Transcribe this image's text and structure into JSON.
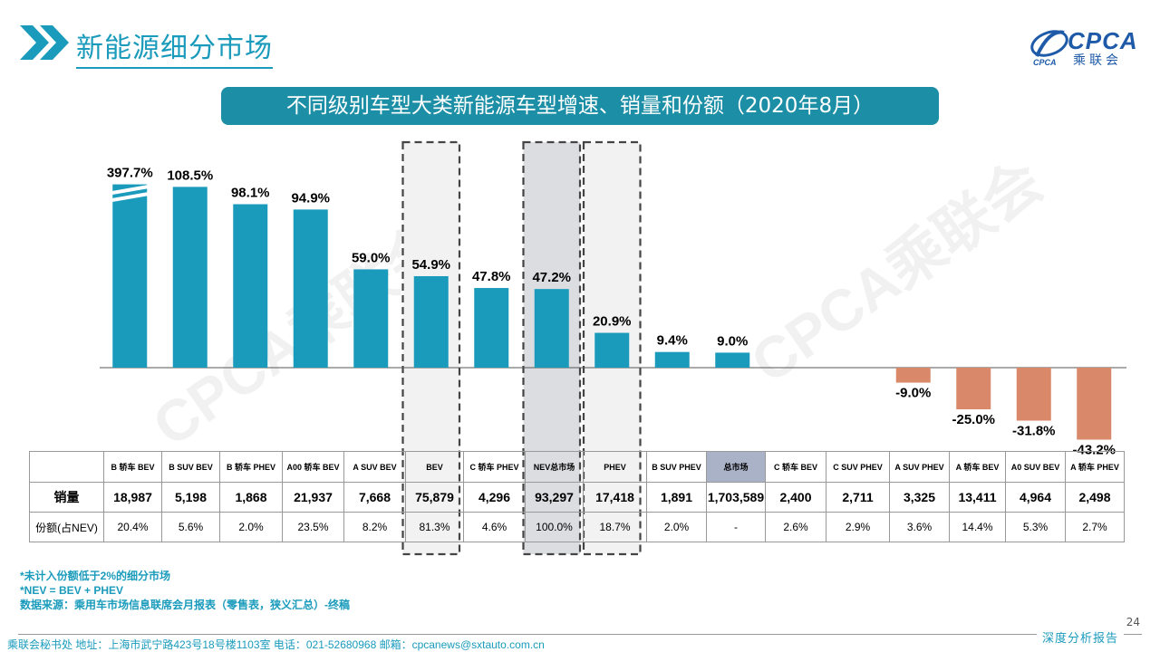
{
  "header": {
    "title": "新能源细分市场",
    "logo_main": "CPCA",
    "logo_sub": "乘联会"
  },
  "chart_title": "不同级别车型大类新能源车型增速、销量和份额（2020年8月）",
  "colors": {
    "positive": "#1a9bbc",
    "negative": "#d9896a",
    "accent": "#1c8fa6",
    "highlight_gray": "#aab2c8"
  },
  "chart_data": {
    "type": "bar",
    "categories": [
      "B 轿车 BEV",
      "B SUV BEV",
      "B 轿车 PHEV",
      "A00 轿车 BEV",
      "A SUV BEV",
      "BEV",
      "C 轿车 PHEV",
      "NEV总市场",
      "PHEV",
      "B SUV PHEV",
      "总市场",
      "C 轿车 BEV",
      "C SUV PHEV",
      "A SUV PHEV",
      "A 轿车 BEV",
      "A0 SUV BEV",
      "A 轿车 PHEV"
    ],
    "values": [
      397.7,
      108.5,
      98.1,
      94.9,
      59.0,
      54.9,
      47.8,
      47.2,
      20.9,
      9.4,
      9.0,
      null,
      null,
      -9.0,
      -25.0,
      -31.8,
      -43.2
    ],
    "labels": [
      "397.7%",
      "108.5%",
      "98.1%",
      "94.9%",
      "59.0%",
      "54.9%",
      "47.8%",
      "47.2%",
      "20.9%",
      "9.4%",
      "9.0%",
      "",
      "",
      "-9.0%",
      "-25.0%",
      "-31.8%",
      "-43.2%"
    ],
    "y_display_cap": 110,
    "broken_bar_index": 0,
    "highlighted_categories": [
      "BEV",
      "NEV总市场",
      "PHEV"
    ]
  },
  "table": {
    "row_labels": [
      "销量",
      "份额(占NEV)"
    ],
    "sales": [
      "18,987",
      "5,198",
      "1,868",
      "21,937",
      "7,668",
      "75,879",
      "4,296",
      "93,297",
      "17,418",
      "1,891",
      "1,703,589",
      "2,400",
      "2,711",
      "3,325",
      "13,411",
      "4,964",
      "2,498"
    ],
    "share": [
      "20.4%",
      "5.6%",
      "2.0%",
      "23.5%",
      "8.2%",
      "81.3%",
      "4.6%",
      "100.0%",
      "18.7%",
      "2.0%",
      "-",
      "2.6%",
      "2.9%",
      "3.6%",
      "14.4%",
      "5.3%",
      "2.7%"
    ]
  },
  "notes": [
    "*未计入份额低于2%的细分市场",
    "*NEV = BEV + PHEV",
    "数据来源：乘用车市场信息联席会月报表（零售表，狭义汇总）-终稿"
  ],
  "footer": {
    "address": "乘联会秘书处   地址：上海市武宁路423号18号楼1103室  电话：021-52680968   邮箱：cpcanews@sxtauto.com.cn",
    "right_label": "深度分析报告",
    "page_number": "24"
  },
  "watermark": "CPCA乘联会"
}
